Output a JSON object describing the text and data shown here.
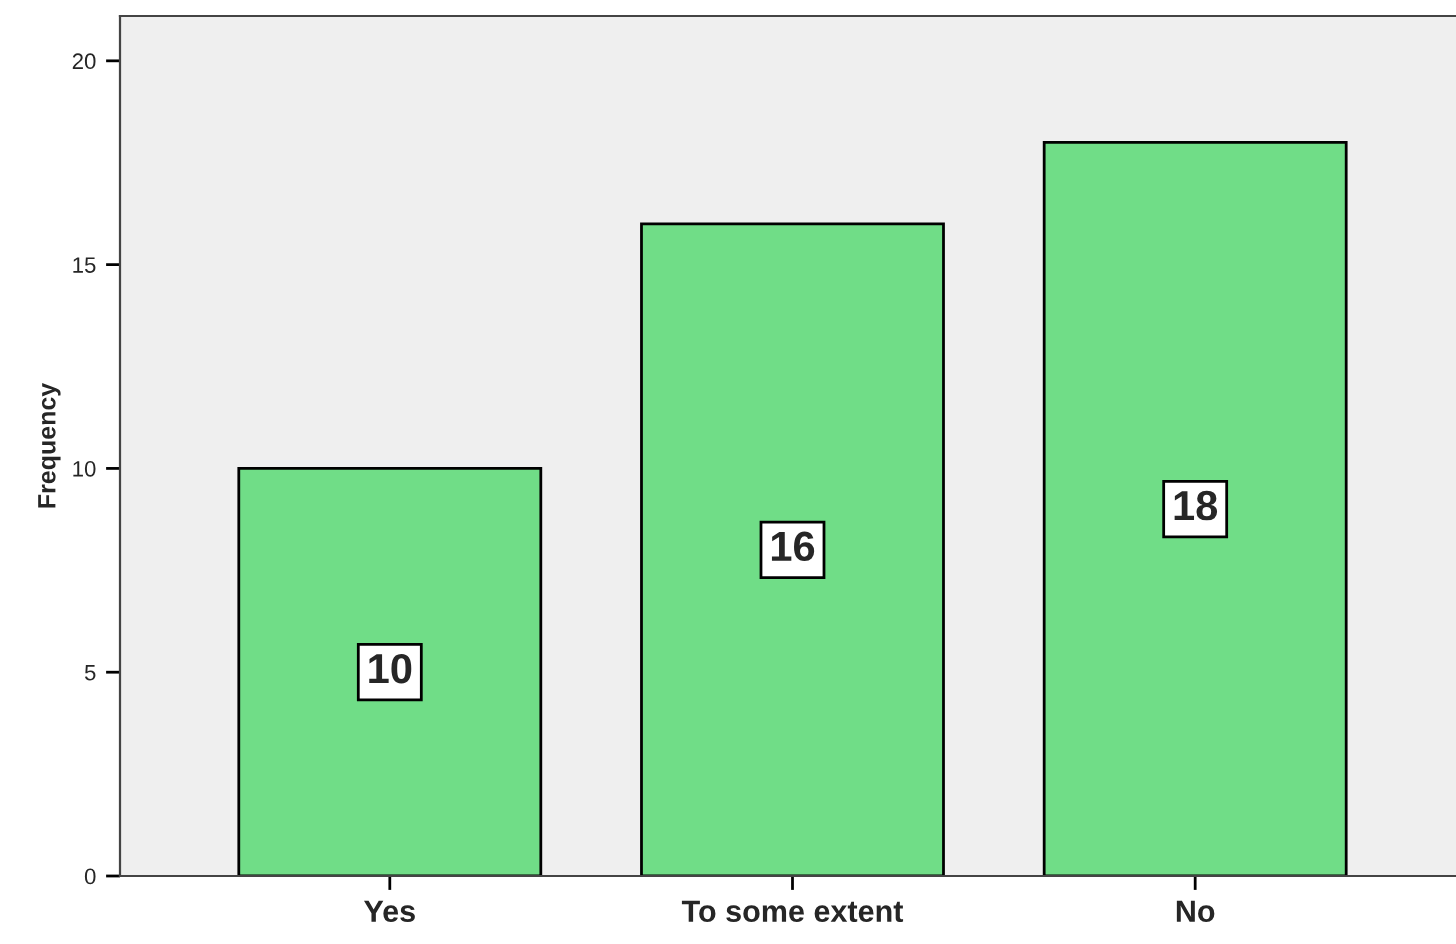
{
  "chart_data": {
    "type": "bar",
    "ylabel": "Frequency",
    "categories": [
      "Yes",
      "To some extent",
      "No"
    ],
    "values": [
      10,
      16,
      18
    ],
    "color": "#70dd87",
    "ylim": [
      0,
      21.1
    ],
    "yticks": [
      0,
      5,
      10,
      15,
      20
    ],
    "grid": false,
    "data_labels": true
  }
}
